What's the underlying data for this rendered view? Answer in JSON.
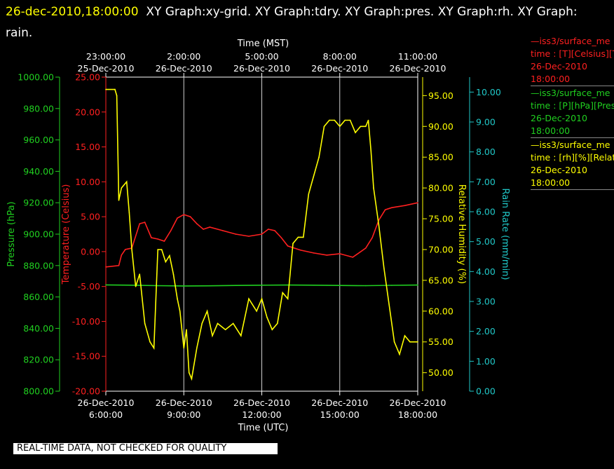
{
  "header": {
    "timestamp": "26-dec-2010,18:00:00",
    "titles": "XY Graph:xy-grid.  XY Graph:tdry.  XY Graph:pres.  XY Graph:rh.  XY Graph:",
    "titles_cont": "rain."
  },
  "legend": [
    {
      "line1": "—iss3/surface_me",
      "line2": "time : [T][Celsius][T",
      "line3": "26-Dec-2010",
      "line4": "18:00:00",
      "color": "#ff2020"
    },
    {
      "line1": "—iss3/surface_me",
      "line2": "time : [P][hPa][Pres",
      "line3": "26-Dec-2010",
      "line4": "18:00:00",
      "color": "#20d020"
    },
    {
      "line1": "—iss3/surface_me",
      "line2": "time : [rh][%][Relati",
      "line3": "26-Dec-2010",
      "line4": "18:00:00",
      "color": "#ffff00"
    }
  ],
  "quality_note": "REAL-TIME DATA, NOT CHECKED FOR QUALITY",
  "chart_data": {
    "type": "line",
    "grid": true,
    "top_axis": {
      "label": "Time (MST)",
      "ticks": [
        {
          "time": "23:00:00",
          "date": "25-Dec-2010"
        },
        {
          "time": "2:00:00",
          "date": "26-Dec-2010"
        },
        {
          "time": "5:00:00",
          "date": "26-Dec-2010"
        },
        {
          "time": "8:00:00",
          "date": "26-Dec-2010"
        },
        {
          "time": "11:00:00",
          "date": "26-Dec-2010"
        }
      ]
    },
    "x_axis": {
      "label": "Time (UTC)",
      "range_hours": [
        6,
        18
      ],
      "ticks": [
        {
          "hour": 6,
          "date": "26-Dec-2010",
          "time": "6:00:00"
        },
        {
          "hour": 9,
          "date": "26-Dec-2010",
          "time": "9:00:00"
        },
        {
          "hour": 12,
          "date": "26-Dec-2010",
          "time": "12:00:00"
        },
        {
          "hour": 15,
          "date": "26-Dec-2010",
          "time": "15:00:00"
        },
        {
          "hour": 18,
          "date": "26-Dec-2010",
          "time": "18:00:00"
        }
      ]
    },
    "axes": {
      "pressure": {
        "label": "Pressure (hPa)",
        "color": "#20d020",
        "range": [
          800,
          1000
        ],
        "ticks": [
          "800.00",
          "820.00",
          "840.00",
          "860.00",
          "880.00",
          "900.00",
          "920.00",
          "940.00",
          "960.00",
          "980.00",
          "1000.00"
        ]
      },
      "temperature": {
        "label": "Temperature (Celsius)",
        "color": "#ff2020",
        "range": [
          -20,
          25
        ],
        "ticks": [
          "-20.00",
          "-15.00",
          "-10.00",
          "-5.00",
          "0.00",
          "5.00",
          "10.00",
          "15.00",
          "20.00",
          "25.00"
        ]
      },
      "humidity": {
        "label": "Relative Humidity (%)",
        "color": "#ffff00",
        "range": [
          47,
          98
        ],
        "ticks": [
          "50.00",
          "55.00",
          "60.00",
          "65.00",
          "70.00",
          "75.00",
          "80.00",
          "85.00",
          "90.00",
          "95.00"
        ]
      },
      "rain": {
        "label": "Rain Rate (mm/min)",
        "color": "#20c8c8",
        "range": [
          0,
          10.5
        ],
        "ticks": [
          "0.00",
          "1.00",
          "2.00",
          "3.00",
          "4.00",
          "5.00",
          "6.00",
          "7.00",
          "8.00",
          "9.00",
          "10.00"
        ]
      }
    },
    "series": [
      {
        "name": "Temperature",
        "axis": "temperature",
        "color": "#ff2020",
        "x": [
          6.0,
          6.5,
          6.6,
          6.75,
          7.0,
          7.3,
          7.5,
          7.75,
          8.0,
          8.25,
          8.5,
          8.75,
          9.0,
          9.25,
          9.5,
          9.75,
          10.0,
          10.5,
          11.0,
          11.5,
          12.0,
          12.25,
          12.5,
          12.75,
          13.0,
          13.5,
          14.0,
          14.5,
          15.0,
          15.5,
          16.0,
          16.25,
          16.5,
          16.75,
          17.0,
          17.5,
          18.0
        ],
        "y": [
          -2.2,
          -2.0,
          -0.5,
          0.3,
          0.5,
          4.0,
          4.2,
          2.0,
          1.8,
          1.5,
          3.0,
          4.8,
          5.3,
          5.0,
          4.0,
          3.2,
          3.5,
          3.0,
          2.5,
          2.2,
          2.5,
          3.2,
          3.0,
          2.0,
          0.8,
          0.2,
          -0.2,
          -0.5,
          -0.3,
          -0.8,
          0.5,
          2.0,
          4.5,
          6.0,
          6.3,
          6.6,
          7.0
        ]
      },
      {
        "name": "Pressure",
        "axis": "pressure",
        "color": "#20d020",
        "x": [
          6.0,
          7.0,
          8.0,
          9.0,
          10.0,
          11.0,
          12.0,
          13.0,
          14.0,
          15.0,
          16.0,
          17.0,
          18.0
        ],
        "y": [
          867.7,
          867.5,
          867.2,
          867.0,
          867.1,
          867.3,
          867.5,
          867.6,
          867.5,
          867.3,
          867.2,
          867.4,
          867.6
        ]
      },
      {
        "name": "Relative Humidity",
        "axis": "humidity",
        "color": "#ffff00",
        "x": [
          6.0,
          6.35,
          6.42,
          6.5,
          6.6,
          6.8,
          6.9,
          7.0,
          7.15,
          7.3,
          7.5,
          7.7,
          7.85,
          8.0,
          8.15,
          8.3,
          8.45,
          8.6,
          8.75,
          8.85,
          9.0,
          9.1,
          9.2,
          9.3,
          9.5,
          9.7,
          9.9,
          10.1,
          10.3,
          10.6,
          10.9,
          11.2,
          11.5,
          11.8,
          12.0,
          12.2,
          12.4,
          12.6,
          12.8,
          13.0,
          13.2,
          13.4,
          13.6,
          13.8,
          14.0,
          14.2,
          14.4,
          14.6,
          14.8,
          15.0,
          15.2,
          15.4,
          15.6,
          15.8,
          16.0,
          16.1,
          16.2,
          16.3,
          16.5,
          16.7,
          16.9,
          17.1,
          17.3,
          17.5,
          17.7,
          18.0
        ],
        "y": [
          96,
          96,
          95,
          78,
          80,
          81,
          76,
          70,
          64,
          66,
          58,
          55,
          54,
          70,
          70,
          68,
          69,
          66,
          62,
          60,
          54,
          57,
          50,
          49,
          54,
          58,
          60,
          56,
          58,
          57,
          58,
          56,
          62,
          60,
          62,
          59,
          57,
          58,
          63,
          62,
          71,
          72,
          72,
          79,
          82,
          85,
          90,
          91,
          91,
          90,
          91,
          91,
          89,
          90,
          90,
          91,
          86,
          80,
          74,
          67,
          61,
          55,
          53,
          56,
          55,
          55
        ]
      },
      {
        "name": "Rain Rate",
        "axis": "rain",
        "color": "#20c8c8",
        "x": [],
        "y": []
      }
    ]
  }
}
